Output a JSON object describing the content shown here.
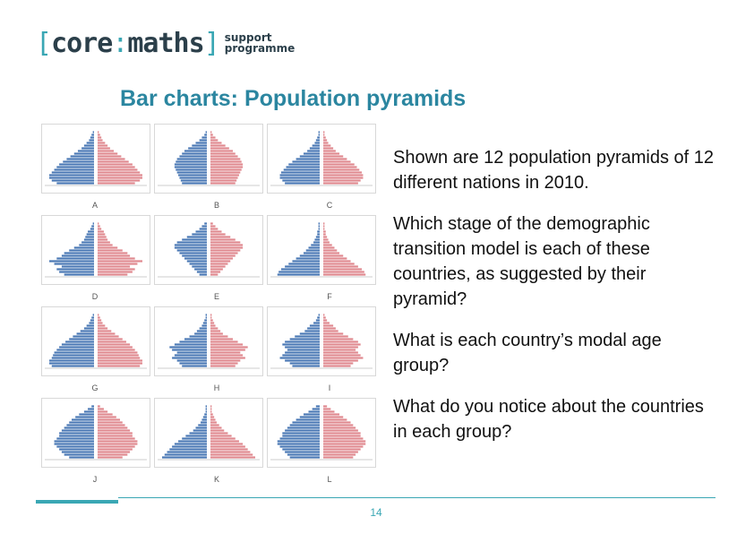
{
  "logo": {
    "open": "[",
    "core": "core",
    "colon": ":",
    "maths": "maths",
    "close": "]",
    "line1": "support",
    "line2": "programme"
  },
  "title": "Bar charts: Population pyramids",
  "body": [
    "Shown are 12 population pyramids of 12 different nations in 2010.",
    "Which stage of the demographic transition model is each of these countries, as suggested by their pyramid?",
    "What is each country’s modal age group?",
    "What do you notice about the countries in each group?"
  ],
  "pyramids": [
    {
      "label": "A",
      "shape": [
        30,
        34,
        36,
        36,
        34,
        32,
        30,
        28,
        25,
        22,
        19,
        16,
        13,
        10,
        8,
        6,
        4,
        3,
        2,
        1
      ]
    },
    {
      "label": "B",
      "shape": [
        20,
        21,
        22,
        23,
        24,
        25,
        26,
        26,
        25,
        24,
        22,
        20,
        18,
        15,
        12,
        9,
        6,
        4,
        2,
        1
      ]
    },
    {
      "label": "C",
      "shape": [
        28,
        30,
        32,
        32,
        31,
        29,
        27,
        25,
        22,
        19,
        16,
        13,
        10,
        8,
        6,
        4,
        3,
        2,
        1,
        1
      ]
    },
    {
      "label": "D",
      "shape": [
        24,
        28,
        30,
        26,
        32,
        36,
        30,
        26,
        24,
        20,
        16,
        12,
        10,
        8,
        7,
        6,
        5,
        3,
        2,
        1
      ]
    },
    {
      "label": "E",
      "shape": [
        6,
        8,
        10,
        12,
        14,
        16,
        18,
        20,
        22,
        24,
        26,
        26,
        24,
        20,
        16,
        12,
        9,
        6,
        4,
        2
      ]
    },
    {
      "label": "F",
      "shape": [
        34,
        33,
        31,
        28,
        25,
        22,
        19,
        16,
        13,
        11,
        9,
        7,
        5,
        4,
        3,
        2,
        2,
        1,
        1,
        1
      ]
    },
    {
      "label": "G",
      "shape": [
        34,
        36,
        36,
        34,
        33,
        32,
        30,
        28,
        26,
        23,
        20,
        17,
        14,
        11,
        8,
        6,
        4,
        3,
        2,
        1
      ]
    },
    {
      "label": "H",
      "shape": [
        20,
        22,
        24,
        28,
        26,
        24,
        28,
        30,
        26,
        22,
        18,
        14,
        10,
        8,
        6,
        4,
        3,
        2,
        1,
        1
      ]
    },
    {
      "label": "I",
      "shape": [
        22,
        24,
        28,
        32,
        30,
        28,
        26,
        28,
        30,
        28,
        24,
        20,
        16,
        12,
        10,
        8,
        5,
        3,
        2,
        1
      ]
    },
    {
      "label": "J",
      "shape": [
        20,
        24,
        26,
        28,
        30,
        32,
        32,
        30,
        28,
        28,
        26,
        24,
        22,
        20,
        18,
        15,
        12,
        8,
        5,
        2
      ]
    },
    {
      "label": "K",
      "shape": [
        36,
        34,
        32,
        30,
        28,
        26,
        23,
        20,
        17,
        14,
        11,
        9,
        7,
        5,
        4,
        3,
        2,
        1,
        1,
        1
      ]
    },
    {
      "label": "L",
      "shape": [
        24,
        26,
        28,
        30,
        32,
        34,
        34,
        32,
        30,
        30,
        28,
        26,
        24,
        22,
        19,
        16,
        13,
        9,
        6,
        3
      ]
    }
  ],
  "page_number": "14",
  "colors": {
    "accent": "#3aa7b4",
    "title": "#2b86a0",
    "male": "#4a78b5",
    "female": "#e0898f"
  }
}
